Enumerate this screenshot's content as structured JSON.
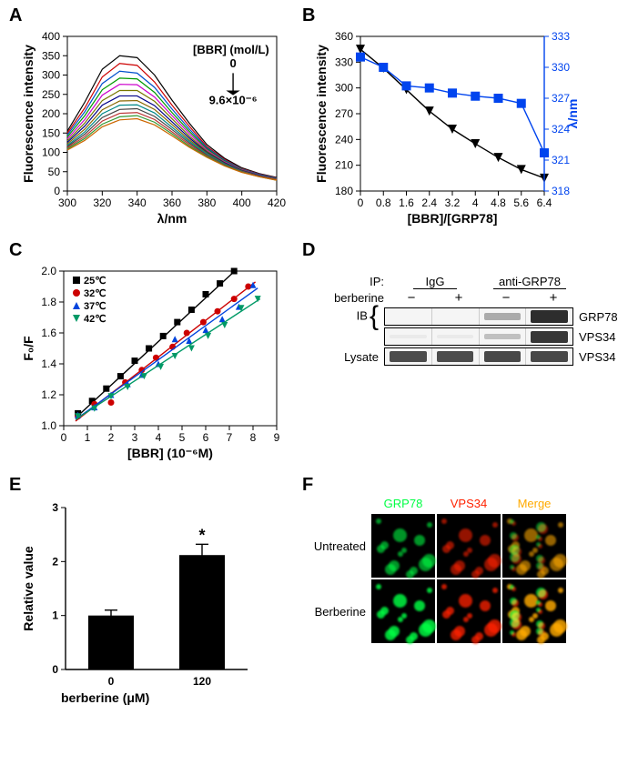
{
  "background_color": "#ffffff",
  "panels": {
    "A": {
      "label": "A",
      "type": "line",
      "xlabel": "λ/nm",
      "ylabel": "Fluorescence intensity",
      "xlim": [
        300,
        420
      ],
      "ylim": [
        0,
        400
      ],
      "xticks": [
        300,
        320,
        340,
        360,
        380,
        400,
        420
      ],
      "yticks": [
        0,
        50,
        100,
        150,
        200,
        250,
        300,
        350,
        400
      ],
      "annotation_top": "[BBR] (mol/L)",
      "annotation_value_top": "0",
      "annotation_value_bottom": "9.6×10⁻⁶",
      "line_width": 1.2,
      "label_fontsize": 14,
      "tick_fontsize": 12,
      "series": [
        {
          "color": "#000000",
          "x": [
            300,
            310,
            320,
            330,
            340,
            350,
            360,
            370,
            380,
            390,
            400,
            410,
            420
          ],
          "y": [
            155,
            230,
            315,
            350,
            345,
            300,
            235,
            175,
            120,
            85,
            60,
            45,
            35
          ]
        },
        {
          "color": "#cc0000",
          "x": [
            300,
            310,
            320,
            330,
            340,
            350,
            360,
            370,
            380,
            390,
            400,
            410,
            420
          ],
          "y": [
            150,
            215,
            295,
            330,
            325,
            282,
            222,
            167,
            115,
            82,
            58,
            44,
            34
          ]
        },
        {
          "color": "#0050cc",
          "x": [
            300,
            310,
            320,
            330,
            340,
            350,
            360,
            370,
            380,
            390,
            400,
            410,
            420
          ],
          "y": [
            145,
            205,
            278,
            310,
            305,
            268,
            212,
            160,
            112,
            80,
            57,
            43,
            33
          ]
        },
        {
          "color": "#009900",
          "x": [
            300,
            310,
            320,
            330,
            340,
            350,
            360,
            370,
            380,
            390,
            400,
            410,
            420
          ],
          "y": [
            140,
            195,
            262,
            292,
            290,
            255,
            203,
            154,
            109,
            78,
            56,
            42,
            32
          ]
        },
        {
          "color": "#cc00cc",
          "x": [
            300,
            310,
            320,
            330,
            340,
            350,
            360,
            370,
            380,
            390,
            400,
            410,
            420
          ],
          "y": [
            135,
            185,
            248,
            276,
            275,
            243,
            195,
            148,
            106,
            76,
            55,
            41,
            31
          ]
        },
        {
          "color": "#777700",
          "x": [
            300,
            310,
            320,
            330,
            340,
            350,
            360,
            370,
            380,
            390,
            400,
            410,
            420
          ],
          "y": [
            130,
            176,
            234,
            260,
            260,
            232,
            187,
            142,
            103,
            74,
            54,
            40,
            30
          ]
        },
        {
          "color": "#000088",
          "x": [
            300,
            310,
            320,
            330,
            340,
            350,
            360,
            370,
            380,
            390,
            400,
            410,
            420
          ],
          "y": [
            126,
            168,
            222,
            246,
            246,
            221,
            179,
            137,
            100,
            73,
            53,
            40,
            30
          ]
        },
        {
          "color": "#886600",
          "x": [
            300,
            310,
            320,
            330,
            340,
            350,
            360,
            370,
            380,
            390,
            400,
            410,
            420
          ],
          "y": [
            122,
            160,
            210,
            233,
            234,
            211,
            172,
            132,
            98,
            71,
            52,
            39,
            30
          ]
        },
        {
          "color": "#008888",
          "x": [
            300,
            310,
            320,
            330,
            340,
            350,
            360,
            370,
            380,
            390,
            400,
            410,
            420
          ],
          "y": [
            118,
            153,
            200,
            222,
            223,
            202,
            165,
            128,
            96,
            70,
            51,
            39,
            29
          ]
        },
        {
          "color": "#444444",
          "x": [
            300,
            310,
            320,
            330,
            340,
            350,
            360,
            370,
            380,
            390,
            400,
            410,
            420
          ],
          "y": [
            115,
            147,
            190,
            211,
            213,
            193,
            159,
            124,
            93,
            68,
            50,
            38,
            29
          ]
        },
        {
          "color": "#bb3333",
          "x": [
            300,
            310,
            320,
            330,
            340,
            350,
            360,
            370,
            380,
            390,
            400,
            410,
            420
          ],
          "y": [
            112,
            141,
            181,
            201,
            203,
            185,
            153,
            120,
            91,
            67,
            50,
            38,
            29
          ]
        },
        {
          "color": "#339933",
          "x": [
            300,
            310,
            320,
            330,
            340,
            350,
            360,
            370,
            380,
            390,
            400,
            410,
            420
          ],
          "y": [
            109,
            136,
            173,
            192,
            195,
            178,
            148,
            116,
            89,
            66,
            49,
            37,
            28
          ]
        },
        {
          "color": "#cc6600",
          "x": [
            300,
            310,
            320,
            330,
            340,
            350,
            360,
            370,
            380,
            390,
            400,
            410,
            420
          ],
          "y": [
            106,
            131,
            166,
            184,
            187,
            171,
            143,
            113,
            87,
            65,
            48,
            37,
            28
          ]
        }
      ]
    },
    "B": {
      "label": "B",
      "type": "line",
      "xlabel": "[BBR]/[GRP78]",
      "ylabel_left": "Fluorescence intensity",
      "ylabel_right": "λ/nm",
      "xlim": [
        0,
        6.4
      ],
      "ylim_left": [
        180,
        360
      ],
      "ylim_right": [
        318,
        333
      ],
      "xticks": [
        0,
        0.8,
        1.6,
        2.4,
        3.2,
        4.0,
        4.8,
        5.6,
        6.4
      ],
      "yticks_left": [
        180,
        210,
        240,
        270,
        300,
        330,
        360
      ],
      "yticks_right": [
        318,
        321,
        324,
        327,
        330,
        333
      ],
      "label_fontsize": 14,
      "tick_fontsize": 12,
      "series_left": {
        "color": "#000000",
        "marker": "triangle-down",
        "marker_size": 5,
        "x": [
          0.0,
          0.8,
          1.6,
          2.4,
          3.2,
          4.0,
          4.8,
          5.6,
          6.4
        ],
        "y": [
          345,
          323,
          298,
          273,
          252,
          235,
          219,
          205,
          195
        ]
      },
      "series_right": {
        "color": "#0044ee",
        "marker": "square",
        "marker_size": 5,
        "x": [
          0.0,
          0.8,
          1.6,
          2.4,
          3.2,
          4.0,
          4.8,
          5.6,
          6.4
        ],
        "y": [
          331,
          330.0,
          328.2,
          328.0,
          327.5,
          327.2,
          327.0,
          326.5,
          321.7
        ]
      }
    },
    "C": {
      "label": "C",
      "type": "scatter-line",
      "xlabel": "[BBR] (10⁻⁶M)",
      "ylabel": "F₀/F",
      "xlim": [
        0,
        9
      ],
      "ylim": [
        1.0,
        2.0
      ],
      "xticks": [
        0,
        1,
        2,
        3,
        4,
        5,
        6,
        7,
        8,
        9
      ],
      "yticks": [
        1.0,
        1.2,
        1.4,
        1.6,
        1.8,
        2.0
      ],
      "label_fontsize": 14,
      "tick_fontsize": 12,
      "legend": [
        {
          "label": "25℃",
          "color": "#000000",
          "marker": "square"
        },
        {
          "label": "32℃",
          "color": "#cc0000",
          "marker": "circle"
        },
        {
          "label": "37℃",
          "color": "#0044dd",
          "marker": "triangle-up"
        },
        {
          "label": "42℃",
          "color": "#009966",
          "marker": "triangle-down"
        }
      ],
      "series": [
        {
          "color": "#000000",
          "marker": "square",
          "x": [
            0.6,
            1.2,
            1.8,
            2.4,
            3.0,
            3.6,
            4.2,
            4.8,
            5.4,
            6.0,
            6.6,
            7.2
          ],
          "y": [
            1.08,
            1.16,
            1.24,
            1.32,
            1.42,
            1.5,
            1.58,
            1.67,
            1.75,
            1.85,
            1.92,
            2.0
          ],
          "fit_x": [
            0.5,
            7.3
          ],
          "fit_y": [
            1.05,
            2.01
          ]
        },
        {
          "color": "#cc0000",
          "marker": "circle",
          "x": [
            0.6,
            1.3,
            2.0,
            2.6,
            3.3,
            3.9,
            4.6,
            5.2,
            5.9,
            6.5,
            7.2,
            7.8
          ],
          "y": [
            1.06,
            1.14,
            1.15,
            1.28,
            1.36,
            1.44,
            1.51,
            1.6,
            1.67,
            1.74,
            1.82,
            1.9
          ],
          "fit_x": [
            0.5,
            8.1
          ],
          "fit_y": [
            1.03,
            1.93
          ]
        },
        {
          "color": "#0044dd",
          "marker": "triangle-up",
          "x": [
            0.6,
            1.3,
            2.0,
            2.7,
            3.3,
            4.0,
            4.7,
            5.3,
            6.0,
            6.7,
            7.4,
            8.0
          ],
          "y": [
            1.07,
            1.12,
            1.2,
            1.27,
            1.33,
            1.4,
            1.56,
            1.55,
            1.62,
            1.69,
            1.77,
            1.91
          ],
          "fit_x": [
            0.5,
            8.2
          ],
          "fit_y": [
            1.04,
            1.89
          ]
        },
        {
          "color": "#009966",
          "marker": "triangle-down",
          "x": [
            0.6,
            1.3,
            2.0,
            2.7,
            3.4,
            4.1,
            4.7,
            5.4,
            6.1,
            6.8,
            7.5,
            8.2
          ],
          "y": [
            1.06,
            1.11,
            1.19,
            1.25,
            1.32,
            1.38,
            1.45,
            1.5,
            1.58,
            1.65,
            1.76,
            1.82
          ],
          "fit_x": [
            0.5,
            8.3
          ],
          "fit_y": [
            1.04,
            1.82
          ]
        }
      ]
    },
    "D": {
      "label": "D",
      "ip_label": "IP:",
      "ip_groups": [
        "IgG",
        "anti-GRP78"
      ],
      "treatment_label": "berberine",
      "treatment_values": [
        "−",
        "+",
        "−",
        "+"
      ],
      "ib_label": "IB",
      "lysate_label": "Lysate",
      "rows": [
        {
          "target": "GRP78",
          "intensities": [
            0.0,
            0.0,
            0.35,
            0.95
          ]
        },
        {
          "target": "VPS34",
          "intensities": [
            0.05,
            0.05,
            0.25,
            0.9
          ]
        }
      ],
      "lysate_row": {
        "target": "VPS34",
        "intensities": [
          0.8,
          0.8,
          0.82,
          0.82
        ]
      },
      "band_color": "#222222",
      "lane_bg": "#f5f5f5",
      "border_color": "#000000"
    },
    "E": {
      "label": "E",
      "type": "bar",
      "xlabel": "berberine (μM)",
      "ylabel": "Relative value",
      "categories": [
        "0",
        "120"
      ],
      "values": [
        1.0,
        2.12
      ],
      "errors": [
        0.1,
        0.2
      ],
      "significance": [
        "",
        "*"
      ],
      "ylim": [
        0,
        3
      ],
      "yticks": [
        0,
        1,
        2,
        3
      ],
      "bar_color": "#000000",
      "bar_width": 0.5,
      "label_fontsize": 14,
      "tick_fontsize": 12
    },
    "F": {
      "label": "F",
      "columns": [
        "GRP78",
        "VPS34",
        "Merge"
      ],
      "rows": [
        "Untreated",
        "Berberine"
      ],
      "channel_colors": {
        "GRP78": "#00ff44",
        "VPS34": "#ff2200",
        "Merge": "#ffaa00"
      },
      "bg_color": "#000000",
      "intensity": {
        "Untreated": {
          "GRP78": 0.55,
          "VPS34": 0.55,
          "Merge": 0.55
        },
        "Berberine": {
          "GRP78": 0.95,
          "VPS34": 0.85,
          "Merge": 0.95
        }
      }
    }
  }
}
